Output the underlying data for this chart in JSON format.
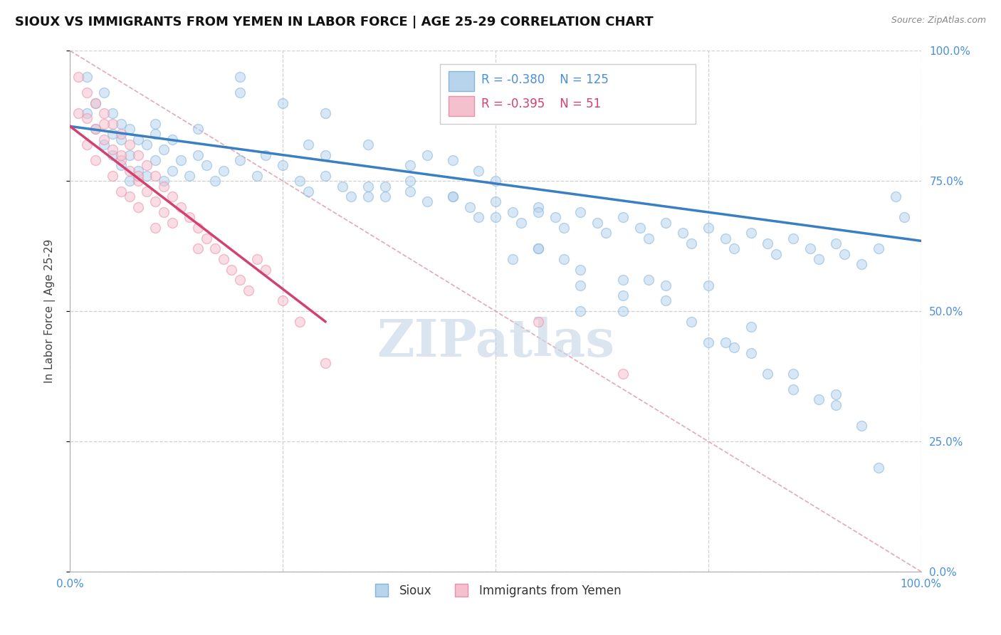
{
  "title": "SIOUX VS IMMIGRANTS FROM YEMEN IN LABOR FORCE | AGE 25-29 CORRELATION CHART",
  "source": "Source: ZipAtlas.com",
  "ylabel": "In Labor Force | Age 25-29",
  "xlim": [
    0.0,
    1.0
  ],
  "ylim": [
    0.0,
    1.0
  ],
  "xtick_positions": [
    0.0,
    0.25,
    0.5,
    0.75,
    1.0
  ],
  "ytick_positions": [
    0.0,
    0.25,
    0.5,
    0.75,
    1.0
  ],
  "grid_color": "#d0d0d0",
  "background_color": "#ffffff",
  "sioux_color": "#b8d4ed",
  "sioux_edge_color": "#85b4d9",
  "yemen_color": "#f5c0ce",
  "yemen_edge_color": "#e890a8",
  "trend_sioux_color": "#3a7fc1",
  "trend_yemen_color": "#d44070",
  "diagonal_color": "#e0a0b0",
  "tick_color": "#4a90d9",
  "R_sioux": -0.38,
  "N_sioux": 125,
  "R_yemen": -0.395,
  "N_yemen": 51,
  "watermark_text": "ZIPatlas",
  "legend_label_sioux": "Sioux",
  "legend_label_yemen": "Immigrants from Yemen",
  "sioux_x": [
    0.02,
    0.02,
    0.03,
    0.03,
    0.04,
    0.04,
    0.05,
    0.05,
    0.05,
    0.06,
    0.06,
    0.06,
    0.07,
    0.07,
    0.07,
    0.08,
    0.08,
    0.09,
    0.09,
    0.1,
    0.1,
    0.11,
    0.11,
    0.12,
    0.12,
    0.13,
    0.14,
    0.15,
    0.16,
    0.17,
    0.18,
    0.2,
    0.22,
    0.23,
    0.25,
    0.27,
    0.28,
    0.3,
    0.32,
    0.33,
    0.35,
    0.37,
    0.4,
    0.42,
    0.45,
    0.47,
    0.48,
    0.5,
    0.52,
    0.53,
    0.55,
    0.57,
    0.58,
    0.6,
    0.62,
    0.63,
    0.65,
    0.67,
    0.68,
    0.7,
    0.72,
    0.73,
    0.75,
    0.77,
    0.78,
    0.8,
    0.82,
    0.83,
    0.85,
    0.87,
    0.88,
    0.9,
    0.91,
    0.93,
    0.95,
    0.97,
    0.98,
    0.2,
    0.3,
    0.4,
    0.5,
    0.6,
    0.7,
    0.8,
    0.9,
    0.35,
    0.45,
    0.55,
    0.65,
    0.75,
    0.85,
    0.25,
    0.5,
    0.75,
    0.15,
    0.4,
    0.65,
    0.9,
    0.1,
    0.35,
    0.6,
    0.85,
    0.2,
    0.55,
    0.8,
    0.45,
    0.7,
    0.3,
    0.6,
    0.42,
    0.78,
    0.55,
    0.68,
    0.82,
    0.37,
    0.58,
    0.73,
    0.88,
    0.48,
    0.65,
    0.95,
    0.28,
    0.52,
    0.77,
    0.93
  ],
  "sioux_y": [
    0.95,
    0.88,
    0.9,
    0.85,
    0.92,
    0.82,
    0.88,
    0.84,
    0.8,
    0.86,
    0.83,
    0.78,
    0.85,
    0.8,
    0.75,
    0.83,
    0.77,
    0.82,
    0.76,
    0.84,
    0.79,
    0.81,
    0.75,
    0.83,
    0.77,
    0.79,
    0.76,
    0.8,
    0.78,
    0.75,
    0.77,
    0.79,
    0.76,
    0.8,
    0.78,
    0.75,
    0.73,
    0.76,
    0.74,
    0.72,
    0.74,
    0.72,
    0.73,
    0.71,
    0.72,
    0.7,
    0.68,
    0.71,
    0.69,
    0.67,
    0.7,
    0.68,
    0.66,
    0.69,
    0.67,
    0.65,
    0.68,
    0.66,
    0.64,
    0.67,
    0.65,
    0.63,
    0.66,
    0.64,
    0.62,
    0.65,
    0.63,
    0.61,
    0.64,
    0.62,
    0.6,
    0.63,
    0.61,
    0.59,
    0.62,
    0.72,
    0.68,
    0.95,
    0.88,
    0.78,
    0.75,
    0.58,
    0.55,
    0.47,
    0.34,
    0.82,
    0.72,
    0.62,
    0.5,
    0.44,
    0.38,
    0.9,
    0.68,
    0.55,
    0.85,
    0.75,
    0.53,
    0.32,
    0.86,
    0.72,
    0.55,
    0.35,
    0.92,
    0.62,
    0.42,
    0.79,
    0.52,
    0.8,
    0.5,
    0.8,
    0.43,
    0.69,
    0.56,
    0.38,
    0.74,
    0.6,
    0.48,
    0.33,
    0.77,
    0.56,
    0.2,
    0.82,
    0.6,
    0.44,
    0.28
  ],
  "yemen_x": [
    0.01,
    0.01,
    0.02,
    0.02,
    0.02,
    0.03,
    0.03,
    0.03,
    0.04,
    0.04,
    0.05,
    0.05,
    0.05,
    0.06,
    0.06,
    0.06,
    0.07,
    0.07,
    0.07,
    0.08,
    0.08,
    0.08,
    0.09,
    0.09,
    0.1,
    0.1,
    0.1,
    0.11,
    0.11,
    0.12,
    0.12,
    0.13,
    0.14,
    0.15,
    0.15,
    0.16,
    0.17,
    0.18,
    0.19,
    0.2,
    0.21,
    0.22,
    0.23,
    0.25,
    0.27,
    0.3,
    0.04,
    0.06,
    0.08,
    0.55,
    0.65
  ],
  "yemen_y": [
    0.95,
    0.88,
    0.92,
    0.87,
    0.82,
    0.9,
    0.85,
    0.79,
    0.88,
    0.83,
    0.86,
    0.81,
    0.76,
    0.84,
    0.79,
    0.73,
    0.82,
    0.77,
    0.72,
    0.8,
    0.75,
    0.7,
    0.78,
    0.73,
    0.76,
    0.71,
    0.66,
    0.74,
    0.69,
    0.72,
    0.67,
    0.7,
    0.68,
    0.66,
    0.62,
    0.64,
    0.62,
    0.6,
    0.58,
    0.56,
    0.54,
    0.6,
    0.58,
    0.52,
    0.48,
    0.4,
    0.86,
    0.8,
    0.76,
    0.48,
    0.38
  ],
  "marker_size": 100,
  "alpha": 0.55,
  "linewidth": 2.5,
  "trend_sioux_x0": 0.0,
  "trend_sioux_y0": 0.855,
  "trend_sioux_x1": 1.0,
  "trend_sioux_y1": 0.635,
  "trend_yemen_x0": 0.0,
  "trend_yemen_y0": 0.855,
  "trend_yemen_x1": 0.3,
  "trend_yemen_y1": 0.48
}
